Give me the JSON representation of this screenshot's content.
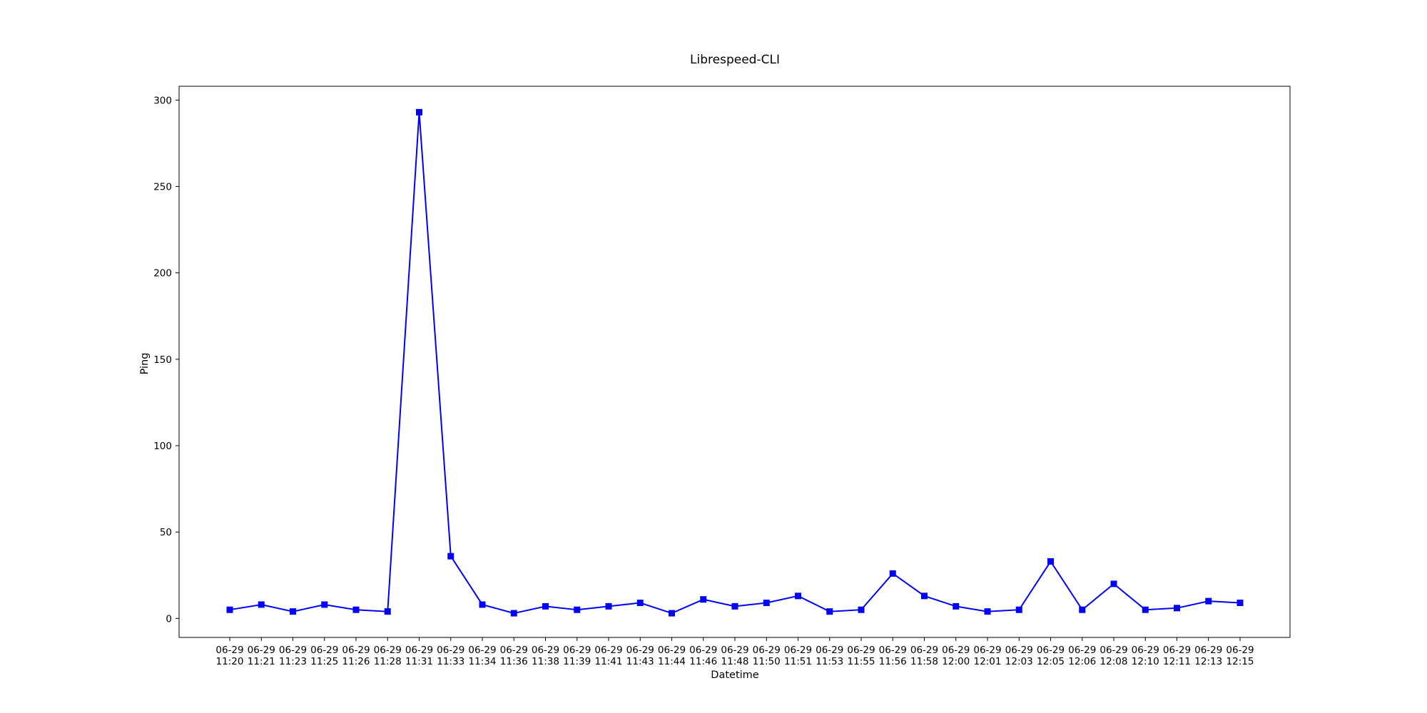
{
  "chart_data": {
    "type": "line",
    "title": "Librespeed-CLI",
    "xlabel": "Datetime",
    "ylabel": "Ping",
    "ylim": [
      -11,
      308
    ],
    "yticks": [
      0,
      50,
      100,
      150,
      200,
      250,
      300
    ],
    "grid": false,
    "legend": null,
    "series_color": "#0000ff",
    "marker": "square",
    "x": [
      "06-29 11:20",
      "06-29 11:21",
      "06-29 11:23",
      "06-29 11:25",
      "06-29 11:26",
      "06-29 11:28",
      "06-29 11:31",
      "06-29 11:33",
      "06-29 11:34",
      "06-29 11:36",
      "06-29 11:38",
      "06-29 11:39",
      "06-29 11:41",
      "06-29 11:43",
      "06-29 11:44",
      "06-29 11:46",
      "06-29 11:48",
      "06-29 11:50",
      "06-29 11:51",
      "06-29 11:53",
      "06-29 11:55",
      "06-29 11:56",
      "06-29 11:58",
      "06-29 12:00",
      "06-29 12:01",
      "06-29 12:03",
      "06-29 12:05",
      "06-29 12:06",
      "06-29 12:08",
      "06-29 12:10",
      "06-29 12:11",
      "06-29 12:13",
      "06-29 12:15"
    ],
    "values": [
      5,
      8,
      4,
      8,
      5,
      4,
      293,
      36,
      8,
      3,
      7,
      5,
      7,
      9,
      3,
      11,
      7,
      9,
      13,
      4,
      5,
      26,
      13,
      7,
      4,
      5,
      33,
      5,
      20,
      5,
      6,
      10,
      9
    ]
  }
}
